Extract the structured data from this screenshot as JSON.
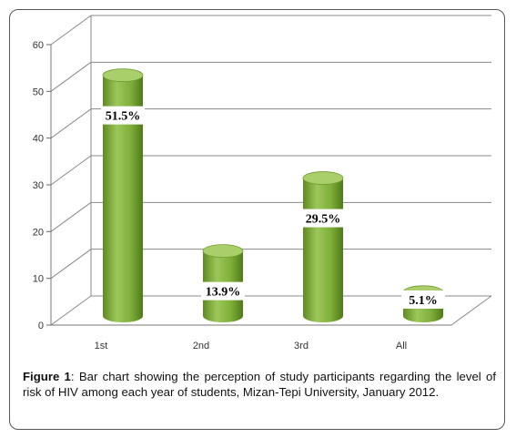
{
  "chart_data": {
    "type": "bar",
    "categories": [
      "1st",
      "2nd",
      "3rd",
      "All"
    ],
    "values": [
      51.5,
      13.9,
      29.5,
      5.1
    ],
    "data_labels": [
      "51.5%",
      "13.9%",
      "29.5%",
      "5.1%"
    ],
    "y_ticks": [
      "0",
      "10",
      "20",
      "30",
      "40",
      "50",
      "60"
    ],
    "ylim": [
      0,
      60
    ],
    "bar_color": "#7fae3a",
    "bar_top_color": "#a9cf6a",
    "grid": true,
    "legend": "none"
  },
  "caption": {
    "label": "Figure 1",
    "text": ": Bar chart showing the perception of study participants regarding the level of risk of HIV among each year of students, Mizan-Tepi University, January 2012."
  }
}
